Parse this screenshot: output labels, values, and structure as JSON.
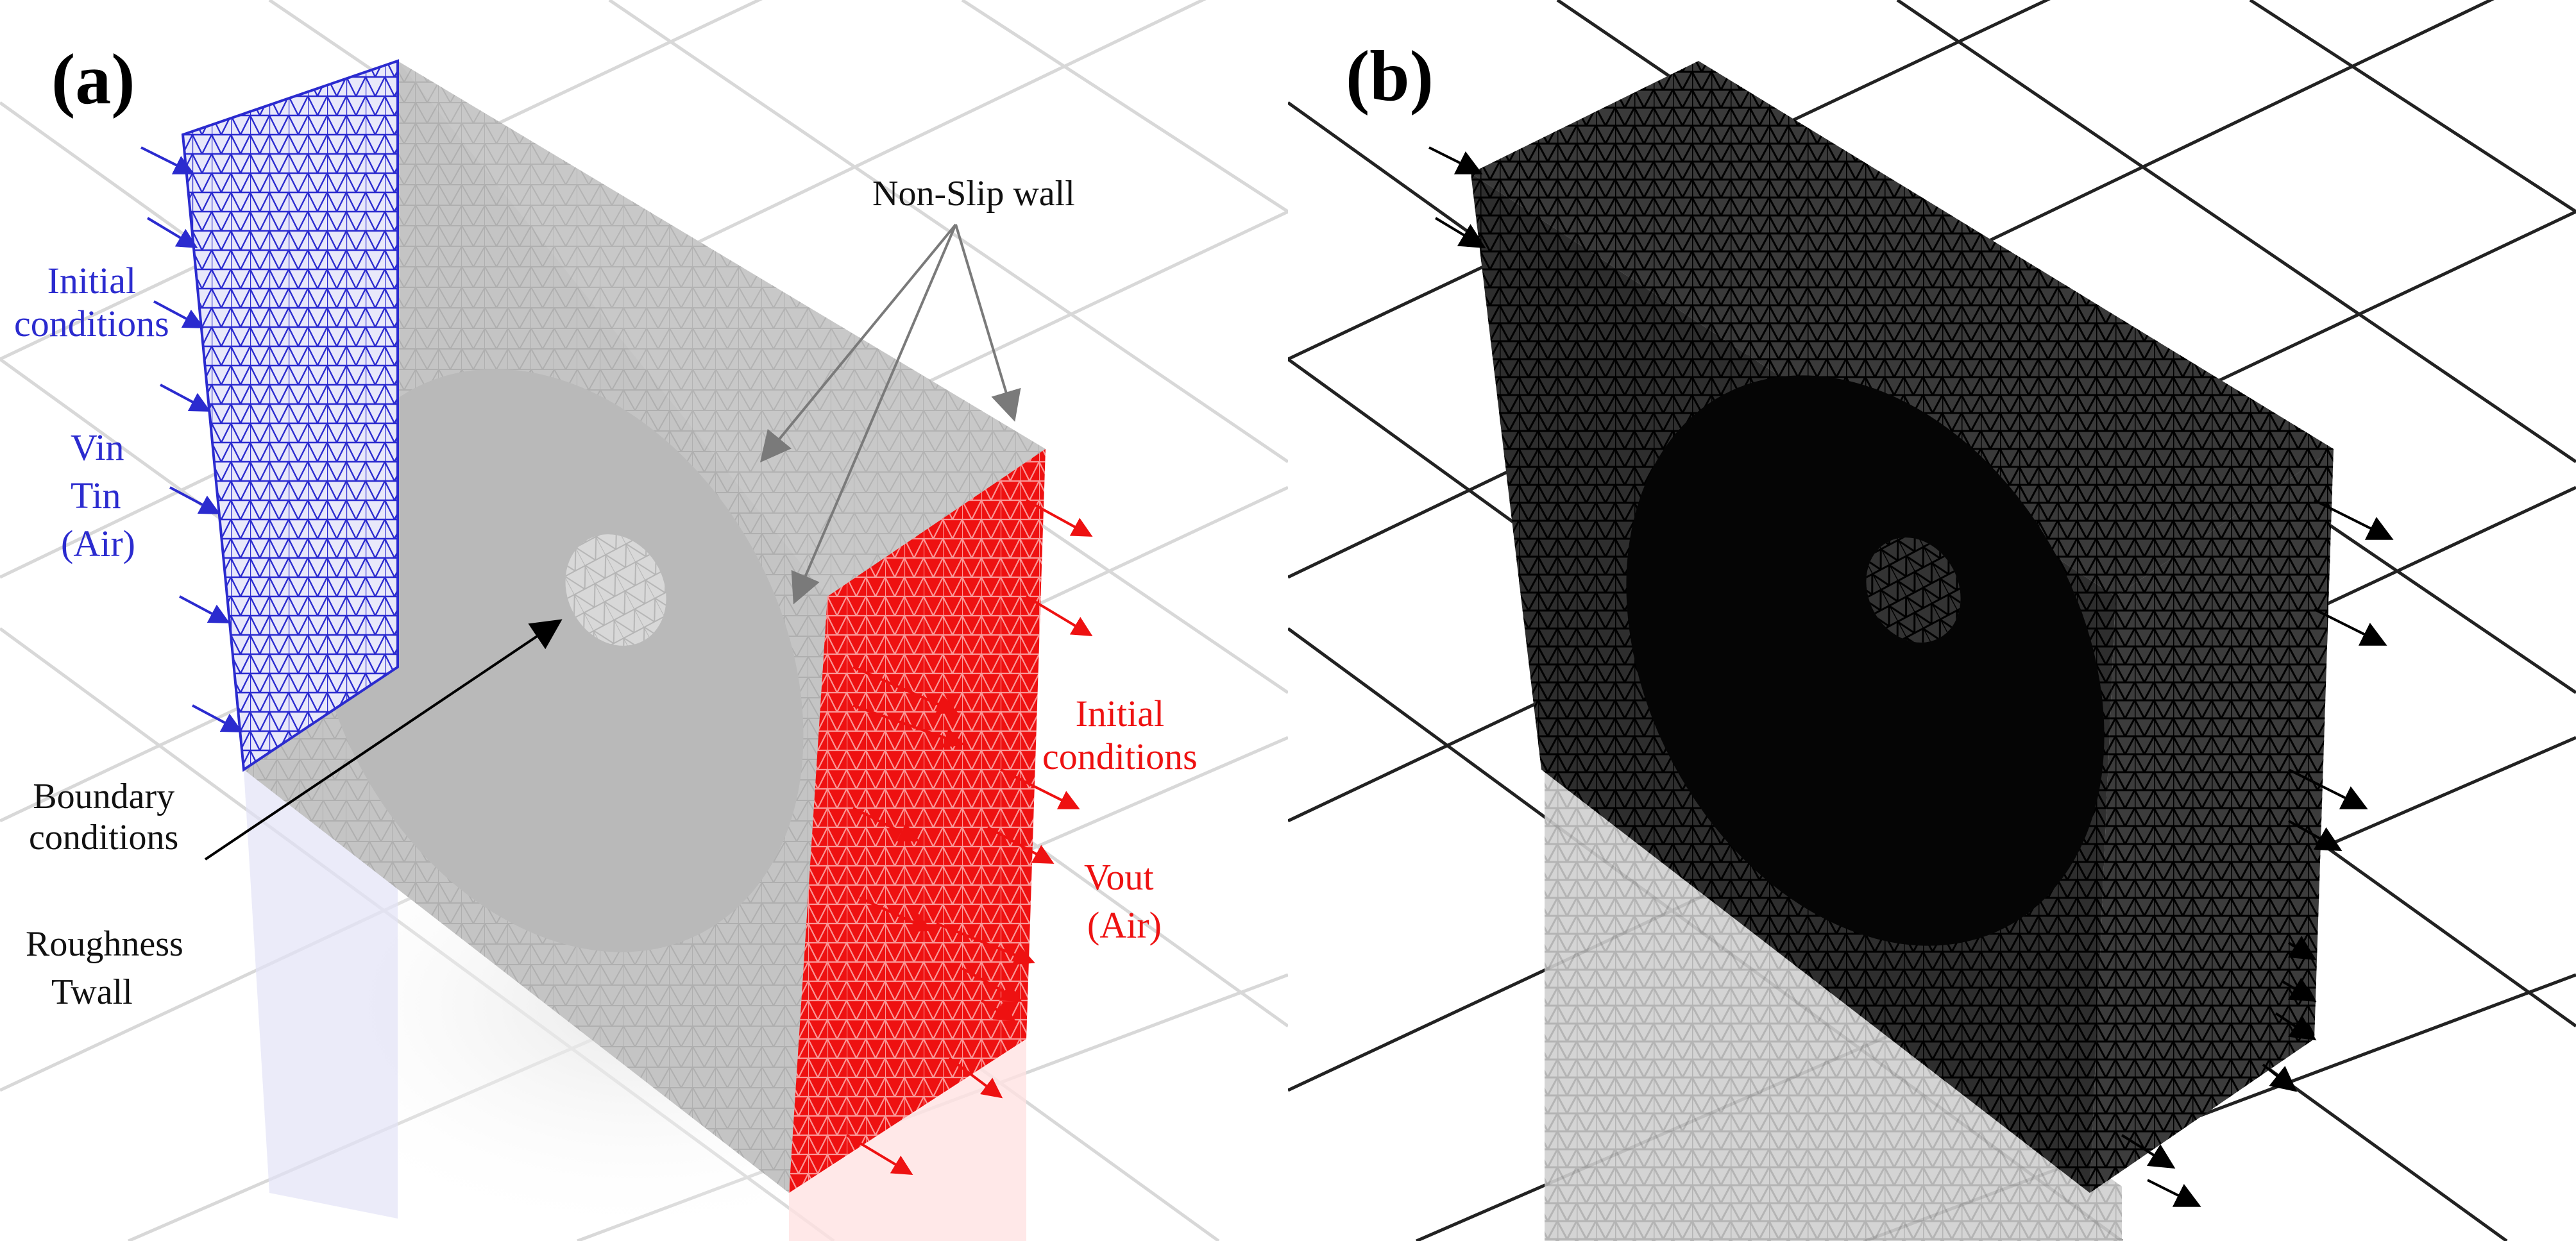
{
  "panels": [
    {
      "letter": "(a)",
      "labels": {
        "inlet_conditions": "Initial\nconditions",
        "inlet_vars_1": "Vin",
        "inlet_vars_2": "Tin",
        "inlet_vars_3": "(Air)",
        "wall": "Non-Slip wall",
        "boundary": "Boundary\nconditions",
        "roughness_1": "Roughness",
        "roughness_2": "Twall",
        "outlet_conditions": "Initial\nconditions",
        "outlet_vars_1": "Vout",
        "outlet_vars_2": "(Air)"
      }
    },
    {
      "letter": "(b)"
    }
  ],
  "colors": {
    "inlet": "#2b2bcf",
    "outlet": "#ee1111",
    "mesh_light": "#bdbdbd",
    "mesh_dark": "#000000",
    "grid": "#d6d6d6"
  }
}
